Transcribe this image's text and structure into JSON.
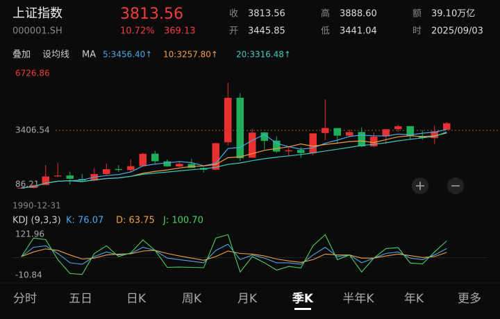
{
  "header": {
    "name": "上证指数",
    "code": "000001.SH",
    "price": "3813.56",
    "change_pct": "10.72%",
    "change": "369.13"
  },
  "quote": [
    {
      "label": "收",
      "value": "3813.56"
    },
    {
      "label": "高",
      "value": "3888.60"
    },
    {
      "label": "额",
      "value": "39.10万亿"
    },
    {
      "label": "开",
      "value": "3445.85"
    },
    {
      "label": "低",
      "value": "3441.04"
    },
    {
      "label": "时",
      "value": "2025/09/03"
    }
  ],
  "toolbar": {
    "items": [
      "叠加",
      "设均线",
      "MA"
    ],
    "ma_labels": [
      {
        "label": "5:3456.40↑",
        "color": "#4aa8e8"
      },
      {
        "label": "10:3257.80↑",
        "color": "#f0a040"
      },
      {
        "label": "20:3316.48↑",
        "color": "#3cc8c0"
      }
    ]
  },
  "price_chart": {
    "type": "candlestick",
    "ylim": [
      86.21,
      6726.86
    ],
    "yticks": [
      86.21,
      3406.54,
      6726.86
    ],
    "ref_line": 3406.54,
    "up_color": "#e93030",
    "down_color": "#1fae5a",
    "candles": [
      [
        96,
        127,
        95,
        127
      ],
      [
        127,
        292,
        105,
        292
      ],
      [
        293,
        1429,
        292,
        780
      ],
      [
        784,
        1558,
        750,
        833
      ],
      [
        834,
        1052,
        325,
        647
      ],
      [
        638,
        926,
        524,
        555
      ],
      [
        550,
        1258,
        512,
        917
      ],
      [
        917,
        1510,
        870,
        1194
      ],
      [
        1200,
        1422,
        1043,
        1146
      ],
      [
        1144,
        1756,
        1047,
        1366
      ],
      [
        1368,
        2125,
        1361,
        2073
      ],
      [
        2077,
        2245,
        1514,
        1646
      ],
      [
        1644,
        1748,
        1339,
        1357
      ],
      [
        1347,
        1649,
        1307,
        1497
      ],
      [
        1492,
        1783,
        1259,
        1266
      ],
      [
        1261,
        1328,
        998,
        1161
      ],
      [
        1163,
        2698,
        1161,
        2675
      ],
      [
        2728,
        6124,
        2541,
        5262
      ],
      [
        5265,
        5522,
        1664,
        1821
      ],
      [
        1849,
        3478,
        1844,
        3277
      ],
      [
        3289,
        3306,
        2319,
        2808
      ],
      [
        2825,
        3067,
        2134,
        2199
      ],
      [
        2212,
        2478,
        1949,
        2269
      ],
      [
        2289,
        2444,
        1849,
        2116
      ],
      [
        2112,
        3239,
        1974,
        3235
      ],
      [
        3258,
        5178,
        2850,
        3539
      ],
      [
        3536,
        3538,
        2638,
        3104
      ],
      [
        3105,
        3450,
        3016,
        3307
      ],
      [
        3314,
        3587,
        2449,
        2494
      ],
      [
        2497,
        3288,
        2440,
        3050
      ],
      [
        3066,
        3474,
        2646,
        3473
      ],
      [
        3474,
        3731,
        3312,
        3640
      ],
      [
        3649,
        3652,
        2863,
        3089
      ],
      [
        3087,
        3419,
        2882,
        2975
      ],
      [
        2966,
        3674,
        2635,
        3352
      ],
      [
        3445.85,
        3888.6,
        3441.04,
        3813.56
      ]
    ],
    "ma": [
      {
        "color": "#4aa8e8",
        "values": [
          127,
          210,
          400,
          508,
          536,
          572,
          746,
          829,
          892,
          1036,
          1379,
          1485,
          1557,
          1628,
          1568,
          1385,
          1531,
          2372,
          2437,
          2839,
          3169,
          2673,
          2475,
          2334,
          2405,
          2672,
          2853,
          3060,
          3136,
          3099,
          3086,
          3193,
          3149,
          3245,
          3306,
          3456.4
        ]
      },
      {
        "color": "#f0a040",
        "values": [
          127,
          210,
          400,
          508,
          536,
          485,
          580,
          660,
          700,
          786,
          960,
          1070,
          1150,
          1260,
          1350,
          1380,
          1460,
          1850,
          1900,
          2080,
          2270,
          2370,
          2470,
          2630,
          2500,
          2600,
          2680,
          2770,
          2800,
          2710,
          2880,
          3040,
          3100,
          3050,
          3090,
          3257.8
        ]
      },
      {
        "color": "#3cc8c0",
        "values": [
          127,
          210,
          400,
          508,
          536,
          485,
          580,
          660,
          700,
          786,
          900,
          970,
          1030,
          1100,
          1160,
          1220,
          1300,
          1470,
          1550,
          1680,
          1790,
          1880,
          1950,
          2030,
          2120,
          2230,
          2330,
          2440,
          2550,
          2610,
          2700,
          2810,
          2900,
          2980,
          3060,
          3316.48
        ]
      }
    ]
  },
  "date_label": "1990-12-31",
  "kdj": {
    "type": "line",
    "title": "KDJ (9,3,3)",
    "ylim": [
      -10.84,
      121.96
    ],
    "yticks": [
      -10.84,
      121.96
    ],
    "series": [
      {
        "name": "K: 76.07",
        "color": "#4aa8e8",
        "values": [
          50,
          80,
          85,
          60,
          30,
          25,
          50,
          65,
          55,
          60,
          80,
          70,
          45,
          40,
          35,
          30,
          70,
          90,
          40,
          55,
          45,
          30,
          30,
          25,
          55,
          80,
          50,
          55,
          30,
          45,
          60,
          65,
          45,
          40,
          55,
          76.07
        ]
      },
      {
        "name": "D: 63.75",
        "color": "#f0a040",
        "values": [
          50,
          65,
          75,
          70,
          55,
          42,
          45,
          55,
          58,
          59,
          68,
          70,
          60,
          52,
          45,
          38,
          50,
          68,
          60,
          58,
          52,
          42,
          36,
          31,
          40,
          58,
          55,
          55,
          45,
          45,
          52,
          58,
          53,
          47,
          50,
          63.75
        ]
      },
      {
        "name": "J: 100.70",
        "color": "#4cd060",
        "values": [
          50,
          110,
          105,
          40,
          -5,
          -8,
          60,
          85,
          50,
          62,
          104,
          70,
          15,
          16,
          15,
          14,
          110,
          121,
          0,
          50,
          30,
          6,
          18,
          13,
          85,
          121,
          40,
          55,
          0,
          45,
          76,
          79,
          29,
          26,
          65,
          100.7
        ]
      }
    ]
  },
  "tabs": [
    "分时",
    "五日",
    "日K",
    "周K",
    "月K",
    "季K",
    "半年K",
    "年K",
    "更多"
  ],
  "selected_tab": 5
}
